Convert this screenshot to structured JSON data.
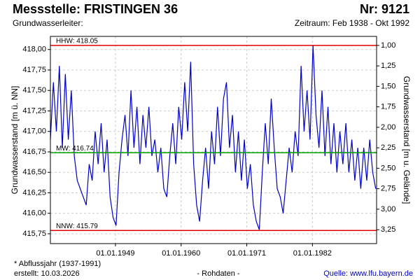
{
  "chart_data": {
    "type": "line",
    "title": "Messstelle: FRISTINGEN 36",
    "number": "Nr: 9121",
    "aquifer": "Grundwasserleiter:",
    "period": "Zeitraum: Feb 1938 - Okt 1992",
    "ylabel": "Grundwasserstand [m ü. NN]",
    "y2label": "Grundwasserstand [m u. Gelände]",
    "footnote": "* Abflussjahr (1937-1991)",
    "created": "erstellt:  10.03.2026",
    "note": "- Rohdaten -",
    "source": "Quelle: www.lfu.bayern.de",
    "grid": true,
    "xlim": [
      1938.1,
      1992.75
    ],
    "xticks": [
      {
        "value": 1949,
        "label": "01.01.1949"
      },
      {
        "value": 1960,
        "label": "01.01.1960"
      },
      {
        "value": 1971,
        "label": "01.01.1971"
      },
      {
        "value": 1982,
        "label": "01.01.1982"
      }
    ],
    "ylim": [
      415.63,
      418.16
    ],
    "yticks": [
      {
        "value": 418.0,
        "label": "418,00"
      },
      {
        "value": 417.75,
        "label": "417,75"
      },
      {
        "value": 417.5,
        "label": "417,50"
      },
      {
        "value": 417.25,
        "label": "417,25"
      },
      {
        "value": 417.0,
        "label": "417,00"
      },
      {
        "value": 416.75,
        "label": "416,75"
      },
      {
        "value": 416.5,
        "label": "416,50"
      },
      {
        "value": 416.25,
        "label": "416,25"
      },
      {
        "value": 416.0,
        "label": "416,00"
      },
      {
        "value": 415.75,
        "label": "415,75"
      }
    ],
    "y2lim": [
      3.42,
      0.89
    ],
    "y2ticks": [
      {
        "value": 1.0,
        "label": "1,00"
      },
      {
        "value": 1.25,
        "label": "1,25"
      },
      {
        "value": 1.5,
        "label": "1,50"
      },
      {
        "value": 1.75,
        "label": "1,75"
      },
      {
        "value": 2.0,
        "label": "2,00"
      },
      {
        "value": 2.25,
        "label": "2,25"
      },
      {
        "value": 2.5,
        "label": "2,50"
      },
      {
        "value": 2.75,
        "label": "2,75"
      },
      {
        "value": 3.0,
        "label": "3,00"
      },
      {
        "value": 3.25,
        "label": "3,25"
      }
    ],
    "reference_lines": [
      {
        "label": "HHW: 418.05",
        "value": 418.05,
        "color": "#e00000"
      },
      {
        "label": "MW: 416.74",
        "value": 416.74,
        "color": "#00a000"
      },
      {
        "label": "NNW: 415.79",
        "value": 415.79,
        "color": "#e00000"
      }
    ],
    "x": [
      1938.1,
      1938.6,
      1939.1,
      1939.6,
      1940.1,
      1940.6,
      1941.1,
      1941.6,
      1942.1,
      1942.6,
      1943.1,
      1943.6,
      1944.1,
      1944.6,
      1945.1,
      1945.6,
      1946.1,
      1946.6,
      1947.1,
      1947.6,
      1948.1,
      1948.6,
      1949.1,
      1949.6,
      1950.1,
      1950.6,
      1951.1,
      1951.6,
      1952.1,
      1952.6,
      1953.1,
      1953.6,
      1954.1,
      1954.6,
      1955.1,
      1955.6,
      1956.1,
      1956.6,
      1957.1,
      1957.6,
      1958.1,
      1958.6,
      1959.1,
      1959.6,
      1960.1,
      1960.6,
      1961.1,
      1961.6,
      1962.1,
      1962.6,
      1963.1,
      1963.6,
      1964.1,
      1964.6,
      1965.1,
      1965.6,
      1966.1,
      1966.6,
      1967.1,
      1967.6,
      1968.1,
      1968.6,
      1969.1,
      1969.6,
      1970.1,
      1970.6,
      1971.1,
      1971.6,
      1972.1,
      1972.6,
      1973.1,
      1973.6,
      1974.1,
      1974.6,
      1975.1,
      1975.6,
      1976.1,
      1976.6,
      1977.1,
      1977.6,
      1978.1,
      1978.6,
      1979.1,
      1979.6,
      1980.1,
      1980.6,
      1981.1,
      1981.6,
      1982.1,
      1982.6,
      1983.1,
      1983.6,
      1984.1,
      1984.6,
      1985.1,
      1985.6,
      1986.1,
      1986.6,
      1987.1,
      1987.6,
      1988.1,
      1988.6,
      1989.1,
      1989.6,
      1990.1,
      1990.6,
      1991.1,
      1991.6,
      1992.1,
      1992.6
    ],
    "series": [
      {
        "color": "#0000cc",
        "values": [
          416.9,
          417.6,
          417.0,
          417.8,
          416.8,
          417.7,
          416.9,
          417.5,
          416.7,
          416.4,
          416.3,
          416.2,
          416.1,
          416.6,
          416.4,
          417.0,
          416.6,
          417.1,
          416.5,
          416.9,
          416.2,
          415.95,
          415.85,
          416.5,
          416.9,
          417.2,
          416.7,
          417.5,
          416.8,
          417.3,
          416.6,
          417.2,
          416.8,
          417.3,
          416.7,
          416.9,
          416.5,
          416.8,
          416.3,
          416.2,
          416.7,
          417.1,
          416.6,
          417.3,
          416.9,
          417.6,
          417.0,
          417.85,
          416.6,
          416.1,
          415.9,
          416.4,
          416.8,
          416.3,
          417.0,
          416.6,
          417.3,
          416.7,
          417.4,
          417.6,
          416.8,
          417.2,
          416.5,
          417.0,
          416.4,
          416.9,
          416.3,
          416.6,
          416.1,
          415.9,
          415.8,
          416.5,
          417.1,
          416.6,
          417.4,
          416.8,
          416.3,
          416.2,
          416.0,
          416.4,
          416.8,
          416.5,
          417.0,
          416.7,
          417.8,
          417.0,
          417.5,
          416.9,
          418.05,
          417.2,
          416.8,
          417.5,
          416.7,
          417.3,
          416.6,
          417.1,
          416.5,
          417.0,
          416.6,
          417.1,
          416.5,
          416.9,
          416.4,
          416.8,
          416.3,
          416.8,
          416.4,
          416.9,
          416.5,
          416.3
        ]
      }
    ]
  }
}
